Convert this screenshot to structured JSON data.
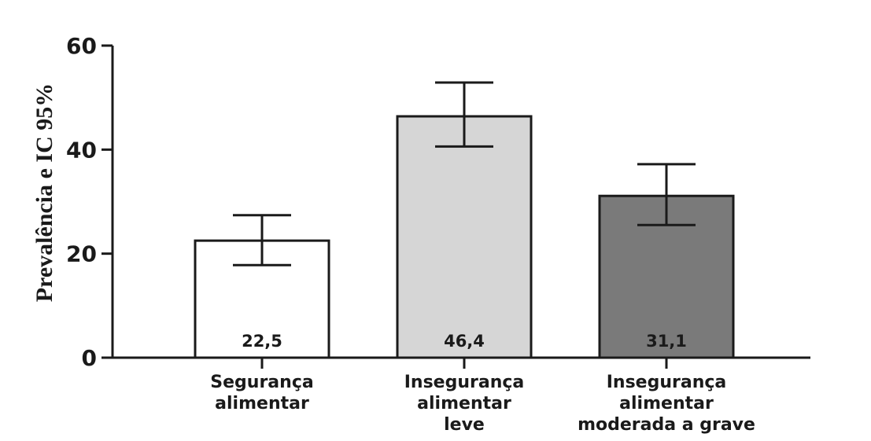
{
  "chart_data": {
    "type": "bar",
    "ylabel": "Prevalência e IC 95%",
    "xlabel": "",
    "ylim": [
      0,
      60
    ],
    "yticks": [
      0,
      20,
      40,
      60
    ],
    "grid": false,
    "categories": [
      [
        "Segurança",
        "alimentar"
      ],
      [
        "Insegurança",
        "alimentar",
        "leve"
      ],
      [
        "Insegurança",
        "alimentar",
        "moderada a grave"
      ]
    ],
    "values": [
      22.5,
      46.4,
      31.1
    ],
    "value_labels": [
      "22,5",
      "46,4",
      "31,1"
    ],
    "ci_lower": [
      17.8,
      40.6,
      25.5
    ],
    "ci_upper": [
      27.4,
      52.9,
      37.2
    ],
    "colors": [
      "#ffffff",
      "#d6d6d6",
      "#7a7a7a"
    ]
  }
}
